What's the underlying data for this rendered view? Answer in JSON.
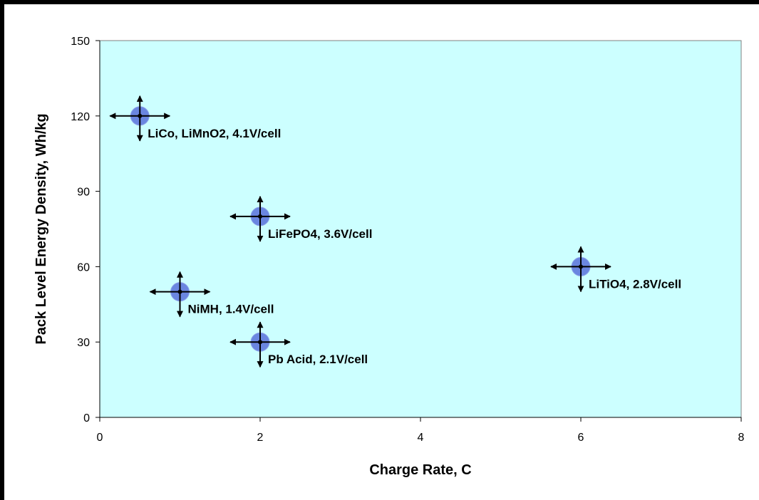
{
  "chart_data": {
    "type": "scatter",
    "title": "",
    "xlabel": "Charge Rate, C",
    "ylabel": "Pack Level Energy Density, Wh/kg",
    "xlim": [
      0,
      8
    ],
    "ylim": [
      0,
      150
    ],
    "x_ticks": [
      "0",
      "2",
      "4",
      "6",
      "8"
    ],
    "y_ticks": [
      "0",
      "30",
      "60",
      "90",
      "120",
      "150"
    ],
    "grid": false,
    "legend": "none",
    "error_bars": "both x and y (arrow-headed)",
    "plot_background": "#ccffff",
    "marker_color": "#6a86e0",
    "points": [
      {
        "x": 0.5,
        "y": 120,
        "label": "LiCo, LiMnO2, 4.1V/cell"
      },
      {
        "x": 2,
        "y": 80,
        "label": "LiFePO4, 3.6V/cell"
      },
      {
        "x": 1,
        "y": 50,
        "label": "NiMH, 1.4V/cell"
      },
      {
        "x": 2,
        "y": 30,
        "label": "Pb Acid, 2.1V/cell"
      },
      {
        "x": 6,
        "y": 60,
        "label": "LiTiO4, 2.8V/cell"
      }
    ]
  }
}
